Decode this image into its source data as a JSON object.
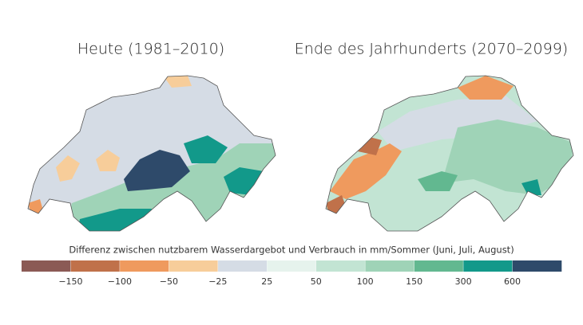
{
  "maps": [
    {
      "title": "Heute (1981–2010)"
    },
    {
      "title": "Ende des Jahrhunderts (2070–2099)"
    }
  ],
  "legend": {
    "title": "Differenz zwischen nutzbarem Wasserdargebot und Verbrauch in mm/Sommer (Juni, Juli, August)",
    "colors": [
      "#8b5a55",
      "#c0714a",
      "#ef9a5e",
      "#f7cd9a",
      "#d5dce5",
      "#e6f3ed",
      "#c2e4d3",
      "#9fd3b7",
      "#62b890",
      "#12998a",
      "#2e4a6a"
    ],
    "ticks": [
      {
        "value": -150,
        "label": "−150"
      },
      {
        "value": -100,
        "label": "−100"
      },
      {
        "value": -50,
        "label": "−50"
      },
      {
        "value": -25,
        "label": "−25"
      },
      25,
      50,
      100,
      150,
      300,
      600
    ]
  }
}
